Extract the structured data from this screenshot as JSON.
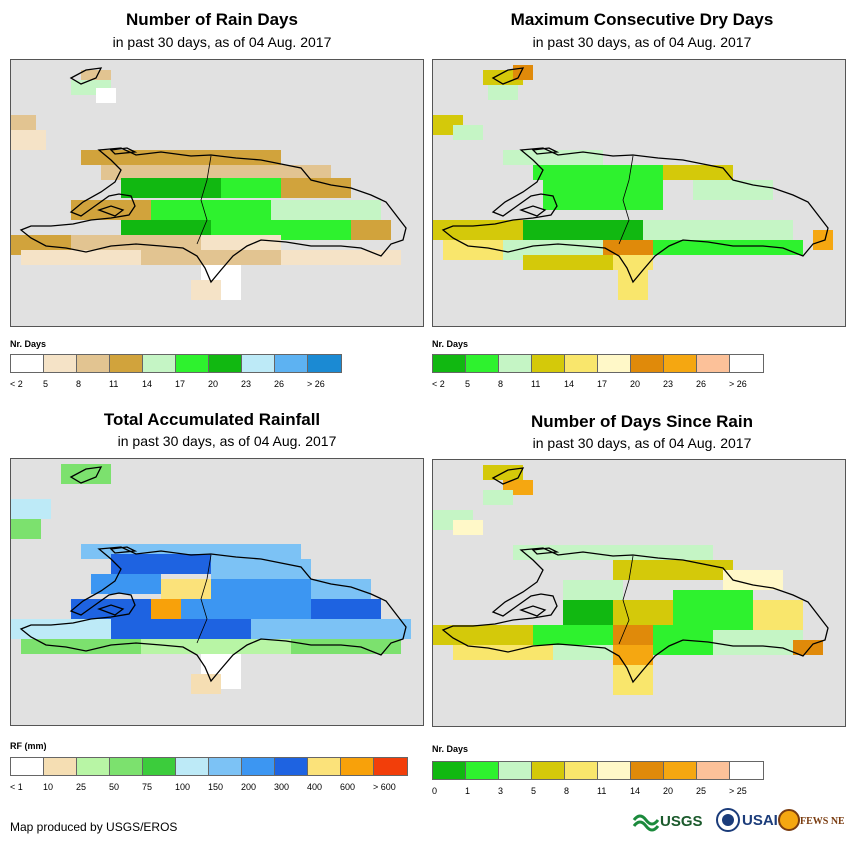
{
  "panels": [
    {
      "id": "rain-days",
      "title": "Number of Rain Days",
      "subtitle": "in past 30 days, as of 04 Aug. 2017",
      "legend_title": "Nr. Days",
      "legend_labels": [
        "< 2",
        "5",
        "8",
        "11",
        "14",
        "17",
        "20",
        "23",
        "26",
        "> 26"
      ],
      "legend_colors": [
        "#ffffff",
        "#f5e3c7",
        "#e2c491",
        "#d1a33c",
        "#c5f5c5",
        "#2ef22e",
        "#11b811",
        "#bdeaf7",
        "#5db2f2",
        "#1b8ad3"
      ]
    },
    {
      "id": "max-dry-days",
      "title": "Maximum Consecutive Dry Days",
      "subtitle": "in past 30 days, as of 04 Aug. 2017",
      "legend_title": "Nr. Days",
      "legend_labels": [
        "< 2",
        "5",
        "8",
        "11",
        "14",
        "17",
        "20",
        "23",
        "26",
        "> 26"
      ],
      "legend_colors": [
        "#11b811",
        "#2ef22e",
        "#c5f5c5",
        "#d4c90a",
        "#f9e66c",
        "#fff8c8",
        "#e08a0a",
        "#f5a711",
        "#fcc199",
        "#ffffff"
      ]
    },
    {
      "id": "total-rainfall",
      "title": "Total Accumulated Rainfall",
      "subtitle": "in past 30 days, as of 04 Aug. 2017",
      "legend_title": "RF (mm)",
      "legend_labels": [
        "< 1",
        "10",
        "25",
        "50",
        "75",
        "100",
        "150",
        "200",
        "300",
        "400",
        "600",
        "> 600"
      ],
      "legend_colors": [
        "#ffffff",
        "#f5deb3",
        "#b8f5a5",
        "#7ce16e",
        "#3ccc3c",
        "#bdeaf7",
        "#7cc2f5",
        "#3c96f2",
        "#1e63e1",
        "#fbe27a",
        "#f8a10a",
        "#f23e0a"
      ]
    },
    {
      "id": "days-since-rain",
      "title": "Number of Days Since Rain",
      "subtitle": "in past 30 days, as of 04 Aug. 2017",
      "legend_title": "Nr. Days",
      "legend_labels": [
        "0",
        "1",
        "3",
        "5",
        "8",
        "11",
        "14",
        "20",
        "25",
        "> 25"
      ],
      "legend_colors": [
        "#11b811",
        "#2ef22e",
        "#c5f5c5",
        "#d4c90a",
        "#f9e66c",
        "#fff8c8",
        "#e08a0a",
        "#f5a711",
        "#fcc199",
        "#ffffff"
      ]
    }
  ],
  "footer": {
    "credit": "Map produced by USGS/EROS"
  },
  "logos": {
    "usgs": "USGS",
    "usaid": "USAID",
    "fewsnet": "FEWS NET"
  },
  "colors": {
    "map_background": "#e1e1e1",
    "coastline": "#000000"
  }
}
